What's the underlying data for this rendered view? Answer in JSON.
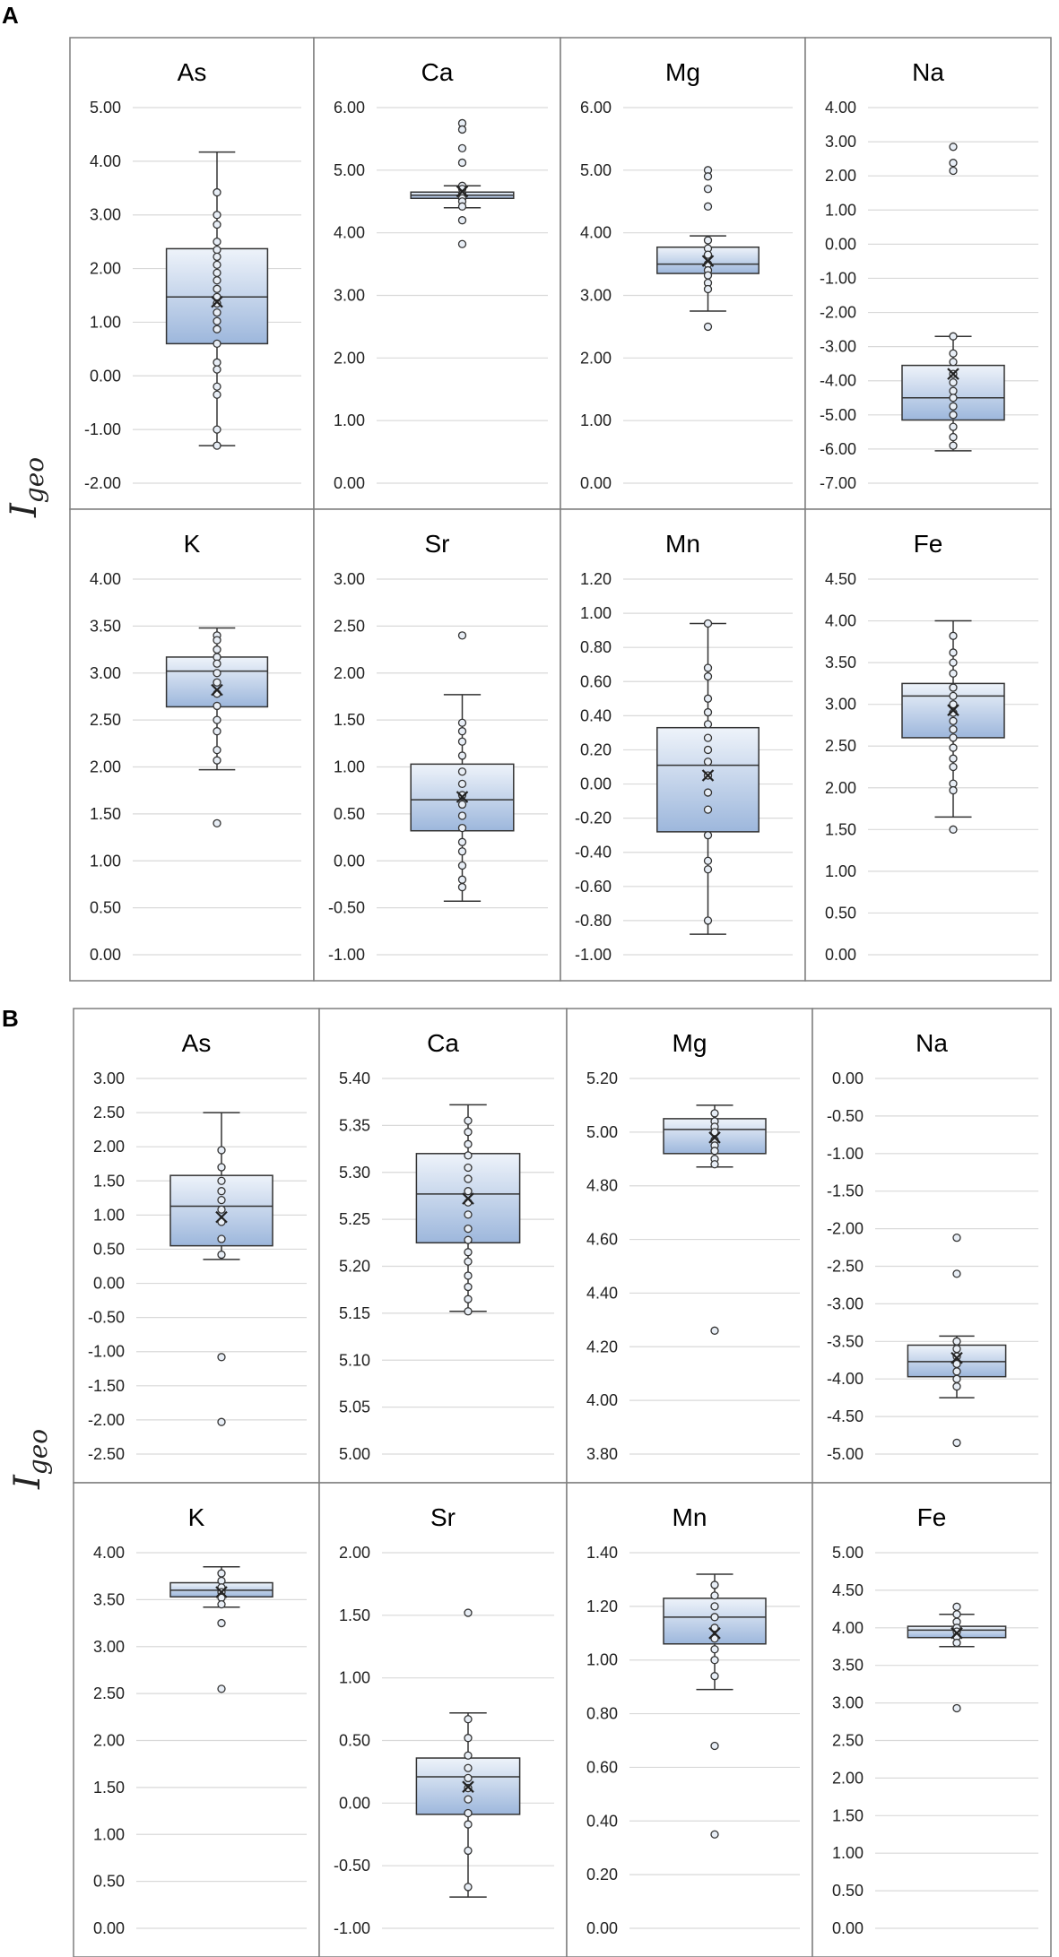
{
  "chart_data": [
    {
      "panel": "A",
      "type": "box",
      "ylabel": "I",
      "ylabel_subscript": "geo",
      "subplots": [
        {
          "title": "As",
          "ylim": [
            -2,
            5
          ],
          "ticks": [
            "5.00",
            "4.00",
            "3.00",
            "2.00",
            "1.00",
            "0.00",
            "-1.00",
            "-2.00"
          ],
          "box": {
            "min": -1.3,
            "q1": 0.6,
            "median": 1.47,
            "q3": 2.37,
            "max": 4.17,
            "mean": 1.38
          },
          "points": [
            3.42,
            3.0,
            2.82,
            2.5,
            2.35,
            2.22,
            2.07,
            1.92,
            1.78,
            1.62,
            1.47,
            1.35,
            1.18,
            1.02,
            0.87,
            0.6,
            0.25,
            0.12,
            -0.2,
            -0.35,
            -1.0,
            -1.3
          ],
          "outliers": []
        },
        {
          "title": "Ca",
          "ylim": [
            0,
            6
          ],
          "ticks": [
            "6.00",
            "5.00",
            "4.00",
            "3.00",
            "2.00",
            "1.00",
            "0.00"
          ],
          "box": {
            "min": 4.4,
            "q1": 4.55,
            "median": 4.6,
            "q3": 4.65,
            "max": 4.75,
            "mean": 4.66
          },
          "points": [
            4.75,
            4.7,
            4.62,
            4.55,
            4.5,
            4.42
          ],
          "outliers": [
            5.75,
            5.65,
            5.35,
            5.12,
            4.2,
            3.82
          ]
        },
        {
          "title": "Mg",
          "ylim": [
            0,
            6
          ],
          "ticks": [
            "6.00",
            "5.00",
            "4.00",
            "3.00",
            "2.00",
            "1.00",
            "0.00"
          ],
          "box": {
            "min": 2.75,
            "q1": 3.35,
            "median": 3.5,
            "q3": 3.77,
            "max": 3.95,
            "mean": 3.55
          },
          "points": [
            3.88,
            3.75,
            3.65,
            3.5,
            3.4,
            3.32,
            3.2,
            3.1
          ],
          "outliers": [
            5.0,
            4.9,
            4.7,
            4.42,
            2.5
          ]
        },
        {
          "title": "Na",
          "ylim": [
            -7,
            4
          ],
          "ticks": [
            "4.00",
            "3.00",
            "2.00",
            "1.00",
            "0.00",
            "-1.00",
            "-2.00",
            "-3.00",
            "-4.00",
            "-5.00",
            "-6.00",
            "-7.00"
          ],
          "box": {
            "min": -6.05,
            "q1": -5.15,
            "median": -4.5,
            "q3": -3.55,
            "max": -2.7,
            "mean": -3.8
          },
          "points": [
            -2.7,
            -3.2,
            -3.45,
            -3.8,
            -4.05,
            -4.3,
            -4.5,
            -4.75,
            -5.0,
            -5.35,
            -5.65,
            -5.9
          ],
          "outliers": [
            2.85,
            2.38,
            2.15
          ]
        },
        {
          "title": "K",
          "ylim": [
            0,
            4
          ],
          "ticks": [
            "4.00",
            "3.50",
            "3.00",
            "2.50",
            "2.00",
            "1.50",
            "1.00",
            "0.50",
            "0.00"
          ],
          "box": {
            "min": 1.97,
            "q1": 2.64,
            "median": 3.02,
            "q3": 3.17,
            "max": 3.48,
            "mean": 2.82
          },
          "points": [
            3.4,
            3.35,
            3.25,
            3.17,
            3.1,
            3.0,
            2.9,
            2.78,
            2.65,
            2.5,
            2.38,
            2.18,
            2.07
          ],
          "outliers": [
            1.4
          ]
        },
        {
          "title": "Sr",
          "ylim": [
            -1,
            3
          ],
          "ticks": [
            "3.00",
            "2.50",
            "2.00",
            "1.50",
            "1.00",
            "0.50",
            "0.00",
            "-0.50",
            "-1.00"
          ],
          "box": {
            "min": -0.43,
            "q1": 0.32,
            "median": 0.65,
            "q3": 1.03,
            "max": 1.77,
            "mean": 0.68
          },
          "points": [
            1.47,
            1.38,
            1.27,
            1.12,
            0.95,
            0.82,
            0.7,
            0.6,
            0.48,
            0.35,
            0.2,
            0.1,
            -0.05,
            -0.2,
            -0.28
          ],
          "outliers": [
            2.4
          ]
        },
        {
          "title": "Mn",
          "ylim": [
            -1,
            1.2
          ],
          "ticks": [
            "1.20",
            "1.00",
            "0.80",
            "0.60",
            "0.40",
            "0.20",
            "0.00",
            "-0.20",
            "-0.40",
            "-0.60",
            "-0.80",
            "-1.00"
          ],
          "box": {
            "min": -0.88,
            "q1": -0.28,
            "median": 0.11,
            "q3": 0.33,
            "max": 0.94,
            "mean": 0.05
          },
          "points": [
            0.94,
            0.68,
            0.63,
            0.5,
            0.42,
            0.35,
            0.27,
            0.2,
            0.13,
            0.05,
            -0.05,
            -0.15,
            -0.3,
            -0.45,
            -0.5,
            -0.8
          ],
          "outliers": []
        },
        {
          "title": "Fe",
          "ylim": [
            0,
            4.5
          ],
          "ticks": [
            "4.50",
            "4.00",
            "3.50",
            "3.00",
            "2.50",
            "2.00",
            "1.50",
            "1.00",
            "0.50",
            "0.00"
          ],
          "box": {
            "min": 1.65,
            "q1": 2.6,
            "median": 3.1,
            "q3": 3.25,
            "max": 4.0,
            "mean": 2.93
          },
          "points": [
            3.82,
            3.62,
            3.5,
            3.37,
            3.2,
            3.1,
            3.0,
            2.9,
            2.8,
            2.7,
            2.6,
            2.48,
            2.35,
            2.25,
            2.05,
            1.97
          ],
          "outliers": [
            1.5
          ]
        }
      ]
    },
    {
      "panel": "B",
      "type": "box",
      "ylabel": "I",
      "ylabel_subscript": "geo",
      "subplots": [
        {
          "title": "As",
          "ylim": [
            -2.5,
            3
          ],
          "ticks": [
            "3.00",
            "2.50",
            "2.00",
            "1.50",
            "1.00",
            "0.50",
            "0.00",
            "-0.50",
            "-1.00",
            "-1.50",
            "-2.00",
            "-2.50"
          ],
          "box": {
            "min": 0.35,
            "q1": 0.55,
            "median": 1.13,
            "q3": 1.58,
            "max": 2.5,
            "mean": 0.97
          },
          "points": [
            1.95,
            1.7,
            1.5,
            1.35,
            1.22,
            1.08,
            0.9,
            0.65,
            0.42
          ],
          "outliers": [
            -1.08,
            -2.03
          ]
        },
        {
          "title": "Ca",
          "ylim": [
            5,
            5.4
          ],
          "ticks": [
            "5.40",
            "5.35",
            "5.30",
            "5.25",
            "5.20",
            "5.15",
            "5.10",
            "5.05",
            "5.00"
          ],
          "box": {
            "min": 5.152,
            "q1": 5.225,
            "median": 5.277,
            "q3": 5.32,
            "max": 5.372,
            "mean": 5.272
          },
          "points": [
            5.355,
            5.343,
            5.33,
            5.318,
            5.305,
            5.293,
            5.28,
            5.268,
            5.255,
            5.24,
            5.228,
            5.215,
            5.205,
            5.19,
            5.178,
            5.165,
            5.152
          ],
          "outliers": []
        },
        {
          "title": "Mg",
          "ylim": [
            3.8,
            5.2
          ],
          "ticks": [
            "5.20",
            "5.00",
            "4.80",
            "4.60",
            "4.40",
            "4.20",
            "4.00",
            "3.80"
          ],
          "box": {
            "min": 4.87,
            "q1": 4.92,
            "median": 5.01,
            "q3": 5.05,
            "max": 5.1,
            "mean": 4.98
          },
          "points": [
            5.07,
            5.04,
            5.02,
            5.0,
            4.97,
            4.95,
            4.93,
            4.9,
            4.88
          ],
          "outliers": [
            4.26
          ]
        },
        {
          "title": "Na",
          "ylim": [
            -5,
            0
          ],
          "ticks": [
            "0.00",
            "-0.50",
            "-1.00",
            "-1.50",
            "-2.00",
            "-2.50",
            "-3.00",
            "-3.50",
            "-4.00",
            "-4.50",
            "-5.00"
          ],
          "box": {
            "min": -4.25,
            "q1": -3.97,
            "median": -3.77,
            "q3": -3.55,
            "max": -3.43,
            "mean": -3.72
          },
          "points": [
            -3.5,
            -3.6,
            -3.7,
            -3.8,
            -3.9,
            -4.0,
            -4.1
          ],
          "outliers": [
            -2.12,
            -2.6,
            -4.85
          ]
        },
        {
          "title": "K",
          "ylim": [
            0,
            4
          ],
          "ticks": [
            "4.00",
            "3.50",
            "3.00",
            "2.50",
            "2.00",
            "1.50",
            "1.00",
            "0.50",
            "0.00"
          ],
          "box": {
            "min": 3.42,
            "q1": 3.53,
            "median": 3.6,
            "q3": 3.68,
            "max": 3.85,
            "mean": 3.58
          },
          "points": [
            3.78,
            3.7,
            3.63,
            3.58,
            3.52,
            3.45
          ],
          "outliers": [
            3.25,
            2.55
          ]
        },
        {
          "title": "Sr",
          "ylim": [
            -1,
            2
          ],
          "ticks": [
            "2.00",
            "1.50",
            "1.00",
            "0.50",
            "0.00",
            "-0.50",
            "-1.00"
          ],
          "box": {
            "min": -0.75,
            "q1": -0.09,
            "median": 0.21,
            "q3": 0.36,
            "max": 0.72,
            "mean": 0.13
          },
          "points": [
            0.67,
            0.52,
            0.38,
            0.28,
            0.2,
            0.12,
            0.03,
            -0.08,
            -0.17,
            -0.38,
            -0.67
          ],
          "outliers": [
            1.52
          ]
        },
        {
          "title": "Mn",
          "ylim": [
            0,
            1.4
          ],
          "ticks": [
            "1.40",
            "1.20",
            "1.00",
            "0.80",
            "0.60",
            "0.40",
            "0.20",
            "0.00"
          ],
          "box": {
            "min": 0.89,
            "q1": 1.06,
            "median": 1.16,
            "q3": 1.23,
            "max": 1.32,
            "mean": 1.1
          },
          "points": [
            1.28,
            1.24,
            1.2,
            1.16,
            1.12,
            1.08,
            1.04,
            1.0,
            0.94
          ],
          "outliers": [
            0.68,
            0.35
          ]
        },
        {
          "title": "Fe",
          "ylim": [
            0,
            5
          ],
          "ticks": [
            "5.00",
            "4.50",
            "4.00",
            "3.50",
            "3.00",
            "2.50",
            "2.00",
            "1.50",
            "1.00",
            "0.50",
            "0.00"
          ],
          "box": {
            "min": 3.75,
            "q1": 3.87,
            "median": 3.97,
            "q3": 4.02,
            "max": 4.18,
            "mean": 3.93
          },
          "points": [
            4.28,
            4.18,
            4.08,
            4.0,
            3.95,
            3.88,
            3.8
          ],
          "outliers": [
            2.93
          ]
        }
      ]
    }
  ]
}
